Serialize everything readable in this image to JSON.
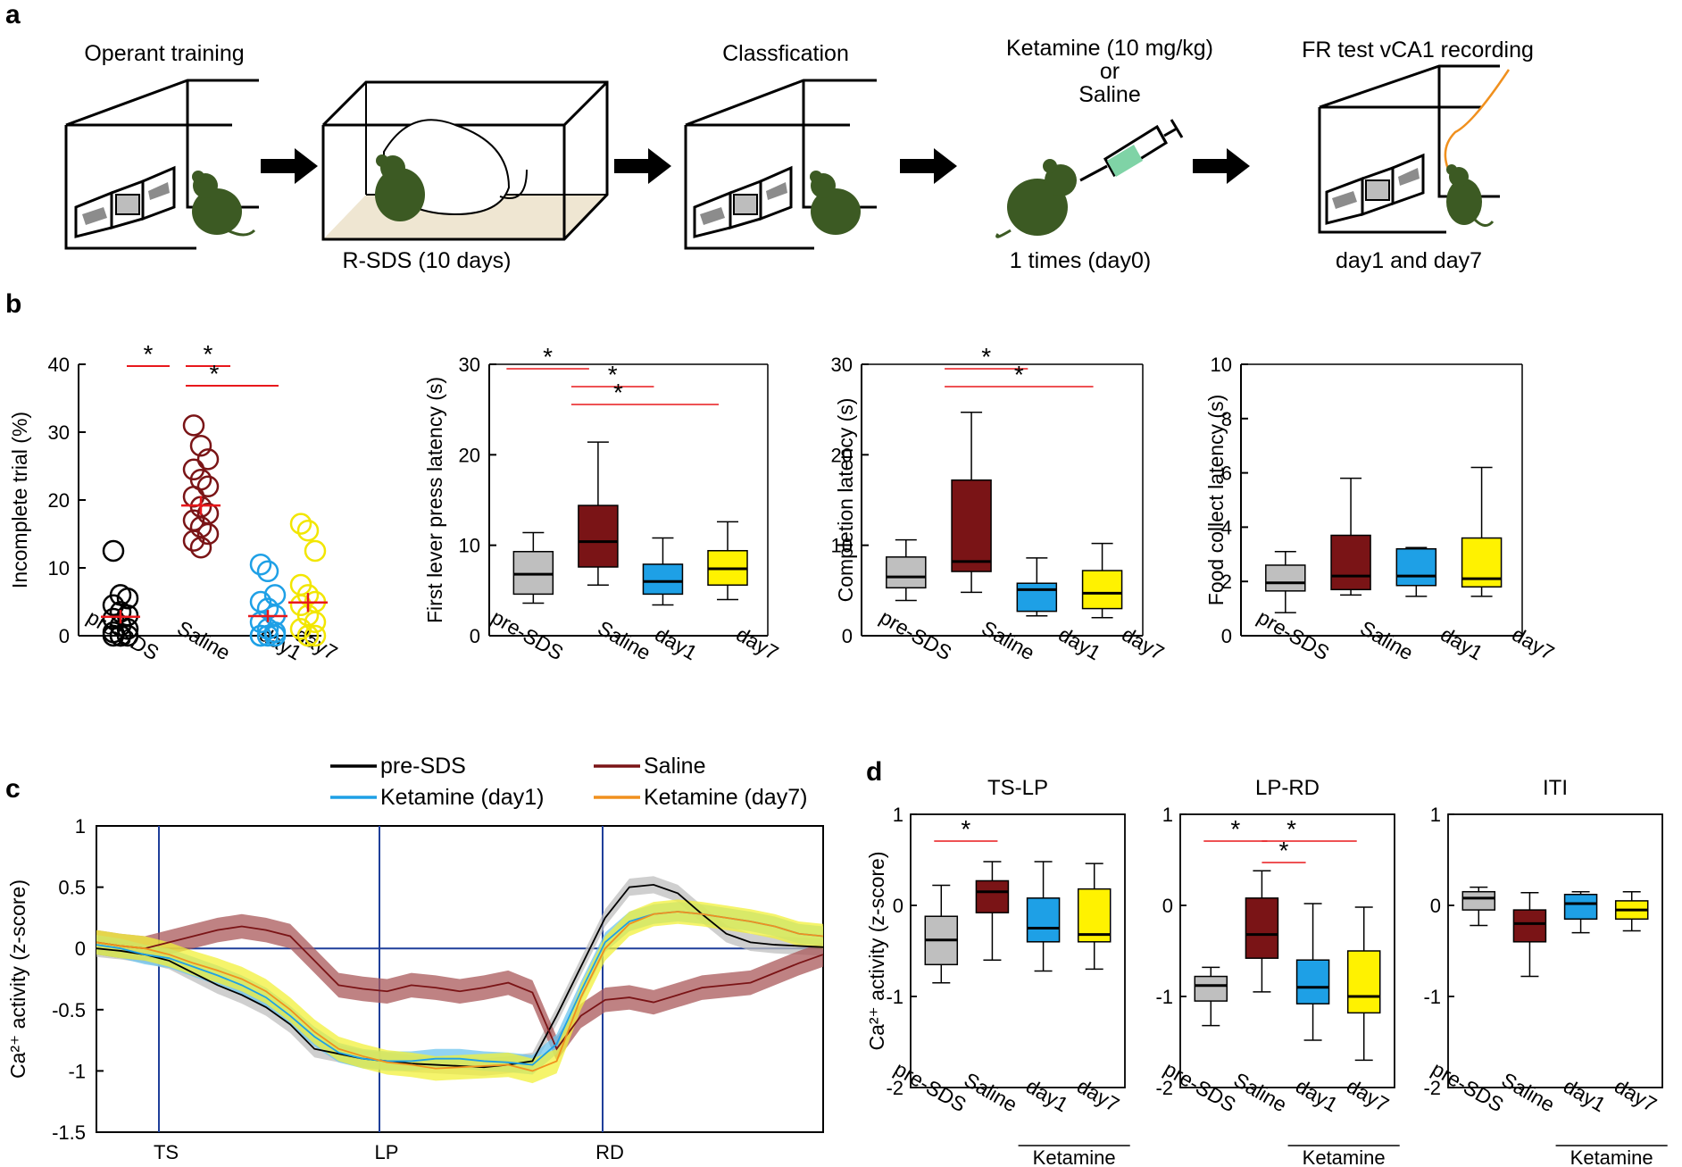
{
  "panel_labels": {
    "a": "a",
    "b": "b",
    "c": "c",
    "d": "d"
  },
  "panel_a": {
    "steps": [
      {
        "top": "Operant training",
        "bottom": ""
      },
      {
        "top": "",
        "bottom": "R-SDS (10 days)"
      },
      {
        "top": "Classfication",
        "bottom": ""
      },
      {
        "top_lines": [
          "Ketamine (10 mg/kg)",
          "or",
          "Saline"
        ],
        "bottom": "1 times (day0)"
      },
      {
        "top": "FR test vCA1 recording",
        "bottom": "day1 and day7"
      }
    ],
    "colors": {
      "mouse": "#3c5a23",
      "fiber": "#f0901e",
      "syringe_fill": "#7fd3a6"
    }
  },
  "groups": [
    "pre-SDS",
    "Saline",
    "day1",
    "day7"
  ],
  "group_colors": {
    "pre-SDS": "#bfbfbf",
    "Saline": "#7a1416",
    "day1": "#1ea0e6",
    "day7": "#fff200"
  },
  "star_symbol": "*",
  "panel_b": [
    {
      "type": "scatter",
      "ylabel": "Incomplete trial (%)",
      "ylim": [
        0,
        40
      ],
      "yticks": [
        "0",
        "10",
        "20",
        "30",
        "40"
      ],
      "colors": [
        "#000000",
        "#7a1416",
        "#1ea0e6",
        "#f2e600"
      ],
      "points": [
        [
          12.5,
          6,
          5.5,
          4.5,
          3.5,
          3,
          2.5,
          1.5,
          1,
          0.5,
          0,
          0,
          0,
          0
        ],
        [
          31,
          28,
          26,
          24.5,
          23,
          22,
          20.5,
          19,
          18,
          17,
          16,
          15,
          14,
          13
        ],
        [
          10.5,
          9.5,
          6,
          5,
          4,
          3,
          2,
          1,
          0.5,
          0,
          0,
          0,
          0
        ],
        [
          16.5,
          15.5,
          12.5,
          7.5,
          6,
          5,
          4.5,
          3,
          2,
          1,
          0,
          0
        ]
      ],
      "means": [
        2.8,
        19.2,
        2.9,
        4.9
      ],
      "sems": [
        1.0,
        1.4,
        0.9,
        1.4
      ],
      "mean_color": "#e8181c",
      "significance": [
        [
          "pre-SDS",
          "Saline"
        ],
        [
          "Saline",
          "day1"
        ],
        [
          "Saline",
          "day7"
        ]
      ]
    },
    {
      "type": "box",
      "ylabel": "First lever press latency (s)",
      "ylim": [
        0,
        30
      ],
      "yticks": [
        "0",
        "10",
        "20",
        "30"
      ],
      "boxes": [
        {
          "min": 3.6,
          "q1": 4.6,
          "median": 6.8,
          "q3": 9.3,
          "max": 11.4
        },
        {
          "min": 5.6,
          "q1": 7.6,
          "median": 10.4,
          "q3": 14.4,
          "max": 21.4
        },
        {
          "min": 3.4,
          "q1": 4.6,
          "median": 6.0,
          "q3": 7.9,
          "max": 10.8
        },
        {
          "min": 4.0,
          "q1": 5.6,
          "median": 7.4,
          "q3": 9.4,
          "max": 12.6
        }
      ],
      "significance": [
        [
          "pre-SDS",
          "Saline"
        ],
        [
          "Saline",
          "day1"
        ],
        [
          "Saline",
          "day7"
        ]
      ]
    },
    {
      "type": "box",
      "ylabel": "Completion latency (s)",
      "ylim": [
        0,
        30
      ],
      "yticks": [
        "0",
        "10",
        "20",
        "30"
      ],
      "boxes": [
        {
          "min": 3.9,
          "q1": 5.3,
          "median": 6.5,
          "q3": 8.7,
          "max": 10.6
        },
        {
          "min": 4.8,
          "q1": 7.1,
          "median": 8.2,
          "q3": 17.2,
          "max": 24.7
        },
        {
          "min": 2.2,
          "q1": 2.7,
          "median": 5.1,
          "q3": 5.8,
          "max": 8.6
        },
        {
          "min": 2.0,
          "q1": 3.0,
          "median": 4.7,
          "q3": 7.2,
          "max": 10.2
        }
      ],
      "significance": [
        [
          "Saline",
          "day1"
        ],
        [
          "Saline",
          "day7"
        ]
      ]
    },
    {
      "type": "box",
      "ylabel": "Food collect latency (s)",
      "ylim": [
        0,
        10
      ],
      "yticks": [
        "0",
        "2",
        "4",
        "6",
        "8",
        "10"
      ],
      "boxes": [
        {
          "min": 0.85,
          "q1": 1.65,
          "median": 1.95,
          "q3": 2.6,
          "max": 3.1
        },
        {
          "min": 1.5,
          "q1": 1.7,
          "median": 2.2,
          "q3": 3.7,
          "max": 5.8
        },
        {
          "min": 1.45,
          "q1": 1.85,
          "median": 2.2,
          "q3": 3.2,
          "max": 3.25
        },
        {
          "min": 1.45,
          "q1": 1.8,
          "median": 2.1,
          "q3": 3.6,
          "max": 6.2
        }
      ],
      "significance": []
    }
  ],
  "panel_c": {
    "type": "line",
    "ylabel": "Ca²⁺ activity (z-score)",
    "ylim": [
      -1.5,
      1
    ],
    "yticks": [
      "-1.5",
      "-1",
      "-0.5",
      "0",
      "0.5",
      "1"
    ],
    "events": [
      "TS",
      "LP",
      "RD"
    ],
    "legend": [
      {
        "name": "pre-SDS",
        "color": "#000000"
      },
      {
        "name": "Saline",
        "color": "#7a1416"
      },
      {
        "name": "Ketamine (day1)",
        "color": "#1ea0e6"
      },
      {
        "name": "Ketamine (day7)",
        "color": "#f0901e"
      }
    ],
    "x": [
      0,
      1,
      2,
      3,
      4,
      5,
      6,
      7,
      8,
      9,
      10,
      11,
      12,
      13,
      14,
      15,
      16,
      17,
      18,
      19,
      20,
      21,
      22,
      23,
      24,
      25,
      26,
      27,
      28,
      29,
      30
    ],
    "series": [
      {
        "name": "pre-SDS",
        "color": "#000000",
        "band": "#bfbfbf",
        "sem": 0.07,
        "values": [
          0,
          -0.02,
          -0.05,
          -0.1,
          -0.2,
          -0.3,
          -0.38,
          -0.48,
          -0.62,
          -0.82,
          -0.86,
          -0.9,
          -0.92,
          -0.94,
          -0.95,
          -0.96,
          -0.97,
          -0.95,
          -0.92,
          -0.55,
          -0.15,
          0.25,
          0.5,
          0.52,
          0.45,
          0.28,
          0.12,
          0.05,
          0.03,
          0.02,
          0.01
        ]
      },
      {
        "name": "Saline",
        "color": "#7a1416",
        "band": "#a9585a",
        "sem": 0.1,
        "values": [
          0.05,
          0.02,
          0.0,
          0.05,
          0.1,
          0.15,
          0.18,
          0.15,
          0.1,
          -0.1,
          -0.3,
          -0.33,
          -0.35,
          -0.3,
          -0.32,
          -0.35,
          -0.32,
          -0.28,
          -0.36,
          -0.82,
          -0.55,
          -0.42,
          -0.4,
          -0.44,
          -0.38,
          -0.32,
          -0.3,
          -0.28,
          -0.2,
          -0.12,
          -0.05
        ]
      },
      {
        "name": "Ketamine (day1)",
        "color": "#1ea0e6",
        "band": "#6cc4ee",
        "sem": 0.08,
        "values": [
          0.03,
          0.0,
          -0.05,
          -0.08,
          -0.15,
          -0.22,
          -0.3,
          -0.4,
          -0.55,
          -0.72,
          -0.85,
          -0.9,
          -0.92,
          -0.92,
          -0.9,
          -0.9,
          -0.92,
          -0.93,
          -0.95,
          -0.78,
          -0.35,
          0.05,
          0.22,
          0.28,
          0.3,
          0.28,
          0.25,
          0.22,
          0.18,
          0.12,
          0.1
        ]
      },
      {
        "name": "Ketamine (day7)",
        "color": "#f0901e",
        "band": "#f2f03a",
        "sem": 0.1,
        "values": [
          0.05,
          0.02,
          0.0,
          -0.05,
          -0.12,
          -0.18,
          -0.25,
          -0.35,
          -0.5,
          -0.68,
          -0.82,
          -0.88,
          -0.93,
          -0.95,
          -0.98,
          -0.97,
          -0.96,
          -0.95,
          -1.0,
          -0.92,
          -0.4,
          0.0,
          0.2,
          0.28,
          0.3,
          0.28,
          0.25,
          0.22,
          0.18,
          0.12,
          0.1
        ]
      }
    ]
  },
  "panel_d": {
    "ylabel": "Ca²⁺ activity (z-score)",
    "ylim": [
      -2,
      1
    ],
    "yticks": [
      "-2",
      "-1",
      "0",
      "1"
    ],
    "ketamine_label": "Ketamine",
    "subplots": [
      {
        "title": "TS-LP",
        "boxes": [
          {
            "min": -0.85,
            "q1": -0.65,
            "median": -0.38,
            "q3": -0.12,
            "max": 0.22
          },
          {
            "min": -0.6,
            "q1": -0.08,
            "median": 0.15,
            "q3": 0.27,
            "max": 0.48
          },
          {
            "min": -0.72,
            "q1": -0.4,
            "median": -0.25,
            "q3": 0.08,
            "max": 0.48
          },
          {
            "min": -0.7,
            "q1": -0.4,
            "median": -0.32,
            "q3": 0.18,
            "max": 0.46
          }
        ],
        "significance": [
          [
            "pre-SDS",
            "Saline"
          ]
        ]
      },
      {
        "title": "LP-RD",
        "boxes": [
          {
            "min": -1.32,
            "q1": -1.05,
            "median": -0.88,
            "q3": -0.78,
            "max": -0.68
          },
          {
            "min": -0.95,
            "q1": -0.58,
            "median": -0.32,
            "q3": 0.08,
            "max": 0.38
          },
          {
            "min": -1.48,
            "q1": -1.08,
            "median": -0.9,
            "q3": -0.6,
            "max": 0.02
          },
          {
            "min": -1.7,
            "q1": -1.18,
            "median": -1.0,
            "q3": -0.5,
            "max": -0.02
          }
        ],
        "significance": [
          [
            "pre-SDS",
            "Saline"
          ],
          [
            "Saline",
            "day1"
          ],
          [
            "Saline",
            "day7"
          ]
        ]
      },
      {
        "title": "ITI",
        "boxes": [
          {
            "min": -0.22,
            "q1": -0.05,
            "median": 0.08,
            "q3": 0.15,
            "max": 0.2
          },
          {
            "min": -0.78,
            "q1": -0.4,
            "median": -0.2,
            "q3": -0.05,
            "max": 0.14
          },
          {
            "min": -0.3,
            "q1": -0.15,
            "median": 0.02,
            "q3": 0.12,
            "max": 0.15
          },
          {
            "min": -0.28,
            "q1": -0.15,
            "median": -0.05,
            "q3": 0.05,
            "max": 0.15
          }
        ],
        "significance": []
      }
    ]
  }
}
